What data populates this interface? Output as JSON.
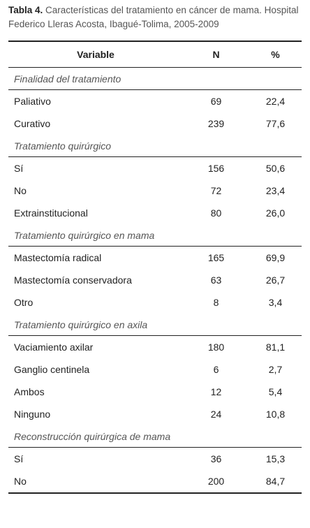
{
  "title": {
    "label": "Tabla 4.",
    "text": "Características del tratamiento en cáncer de mama. Hospital Federico Lleras Acosta, Ibagué-Tolima, 2005-2009"
  },
  "table": {
    "header": [
      "Variable",
      "N",
      "%"
    ],
    "sections": [
      {
        "title": "Finalidad del tratamiento",
        "rows": [
          [
            "Paliativo",
            "69",
            "22,4"
          ],
          [
            "Curativo",
            "239",
            "77,6"
          ]
        ]
      },
      {
        "title": "Tratamiento quirúrgico",
        "rows": [
          [
            "Sí",
            "156",
            "50,6"
          ],
          [
            "No",
            "72",
            "23,4"
          ],
          [
            "Extrainstitucional",
            "80",
            "26,0"
          ]
        ]
      },
      {
        "title": "Tratamiento quirúrgico en mama",
        "rows": [
          [
            "Mastectomía radical",
            "165",
            "69,9"
          ],
          [
            "Mastectomía conservadora",
            "63",
            "26,7"
          ],
          [
            "Otro",
            "8",
            "3,4"
          ]
        ]
      },
      {
        "title": "Tratamiento quirúrgico en axila",
        "rows": [
          [
            "Vaciamiento axilar",
            "180",
            "81,1"
          ],
          [
            "Ganglio centinela",
            "6",
            "2,7"
          ],
          [
            "Ambos",
            "12",
            "5,4"
          ],
          [
            "Ninguno",
            "24",
            "10,8"
          ]
        ]
      },
      {
        "title": "Reconstrucción quirúrgica de mama",
        "rows": [
          [
            "Sí",
            "36",
            "15,3"
          ],
          [
            "No",
            "200",
            "84,7"
          ]
        ]
      }
    ]
  }
}
